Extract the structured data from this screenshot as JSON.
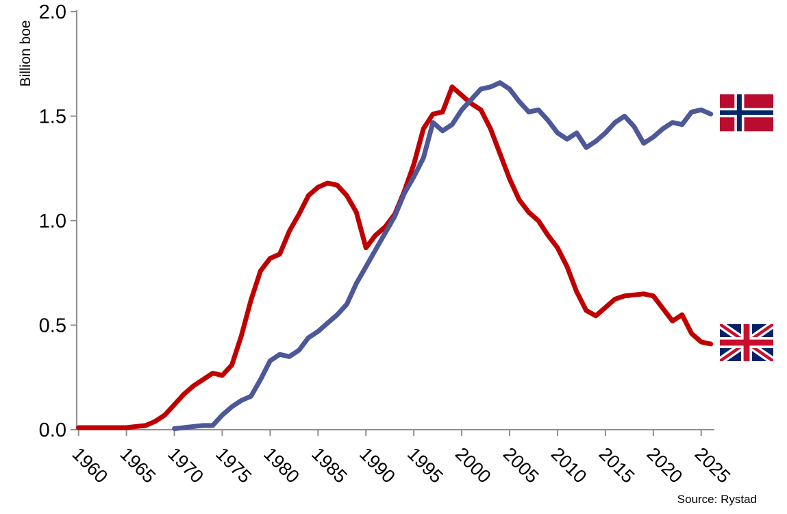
{
  "page": {
    "background": "#FFFFFF"
  },
  "y_axis": {
    "title": "Billion boe",
    "tick_labels": [
      "2.0",
      "1.5",
      "1.0",
      "0.5",
      "0.0"
    ]
  },
  "x_axis": {
    "tick_labels": [
      "1960",
      "1965",
      "1970",
      "1975",
      "1980",
      "1985",
      "1990",
      "1995",
      "2000",
      "2005",
      "2010",
      "2015",
      "2020",
      "2025"
    ]
  },
  "source_note": "Source: Rystad",
  "style": {
    "axis_color": "#8F8F8F",
    "text_color": "#000000",
    "line_width": 7,
    "uk_line_color": "#C00000",
    "norway_line_color": "#4C5897"
  },
  "flags": {
    "norway": {
      "red": "#BA0C2F",
      "blue": "#002868",
      "white": "#FFFFFF"
    },
    "uk": {
      "blue": "#012169",
      "red": "#C8102E",
      "white": "#FFFFFF"
    }
  },
  "chart_data": {
    "type": "line",
    "title": "",
    "xlabel": "",
    "ylabel": "Billion boe",
    "ylim": [
      0,
      2.0
    ],
    "y_ticks": [
      0,
      0.5,
      1.0,
      1.5,
      2.0
    ],
    "x_ticks": [
      1960,
      1965,
      1970,
      1975,
      1980,
      1985,
      1990,
      1995,
      2000,
      2005,
      2010,
      2015,
      2020,
      2025
    ],
    "grid": false,
    "legend": "flag icons at right end of each line (Norway flag on upper line, UK flag on lower line)",
    "series": [
      {
        "name": "United Kingdom",
        "flag": "uk",
        "color": "#C00000",
        "years": [
          1960,
          1961,
          1962,
          1963,
          1964,
          1965,
          1966,
          1967,
          1968,
          1969,
          1970,
          1971,
          1972,
          1973,
          1974,
          1975,
          1976,
          1977,
          1978,
          1979,
          1980,
          1981,
          1982,
          1983,
          1984,
          1985,
          1986,
          1987,
          1988,
          1989,
          1990,
          1991,
          1992,
          1993,
          1994,
          1995,
          1996,
          1997,
          1998,
          1999,
          2000,
          2001,
          2002,
          2003,
          2004,
          2005,
          2006,
          2007,
          2008,
          2009,
          2010,
          2011,
          2012,
          2013,
          2014,
          2015,
          2016,
          2017,
          2018,
          2019,
          2020,
          2021,
          2022,
          2023,
          2024,
          2025,
          2026
        ],
        "values": [
          0.01,
          0.01,
          0.01,
          0.01,
          0.01,
          0.01,
          0.015,
          0.02,
          0.04,
          0.07,
          0.12,
          0.17,
          0.21,
          0.24,
          0.27,
          0.26,
          0.31,
          0.45,
          0.62,
          0.76,
          0.82,
          0.84,
          0.95,
          1.03,
          1.12,
          1.16,
          1.18,
          1.17,
          1.12,
          1.04,
          0.87,
          0.93,
          0.97,
          1.03,
          1.14,
          1.27,
          1.44,
          1.51,
          1.52,
          1.64,
          1.6,
          1.56,
          1.53,
          1.44,
          1.32,
          1.2,
          1.1,
          1.04,
          1.0,
          0.93,
          0.87,
          0.78,
          0.66,
          0.57,
          0.545,
          0.585,
          0.625,
          0.64,
          0.645,
          0.65,
          0.64,
          0.58,
          0.52,
          0.55,
          0.46,
          0.42,
          0.41
        ]
      },
      {
        "name": "Norway",
        "flag": "norway",
        "color": "#4C5897",
        "years": [
          1970,
          1971,
          1972,
          1973,
          1974,
          1975,
          1976,
          1977,
          1978,
          1979,
          1980,
          1981,
          1982,
          1983,
          1984,
          1985,
          1986,
          1987,
          1988,
          1989,
          1990,
          1991,
          1992,
          1993,
          1994,
          1995,
          1996,
          1997,
          1998,
          1999,
          2000,
          2001,
          2002,
          2003,
          2004,
          2005,
          2006,
          2007,
          2008,
          2009,
          2010,
          2011,
          2012,
          2013,
          2014,
          2015,
          2016,
          2017,
          2018,
          2019,
          2020,
          2021,
          2022,
          2023,
          2024,
          2025,
          2026
        ],
        "values": [
          0.005,
          0.01,
          0.015,
          0.02,
          0.02,
          0.07,
          0.11,
          0.14,
          0.16,
          0.24,
          0.33,
          0.36,
          0.35,
          0.38,
          0.44,
          0.47,
          0.51,
          0.55,
          0.6,
          0.7,
          0.78,
          0.86,
          0.94,
          1.02,
          1.13,
          1.21,
          1.3,
          1.47,
          1.43,
          1.46,
          1.53,
          1.58,
          1.63,
          1.64,
          1.66,
          1.63,
          1.57,
          1.52,
          1.53,
          1.48,
          1.42,
          1.39,
          1.42,
          1.35,
          1.38,
          1.42,
          1.47,
          1.5,
          1.45,
          1.37,
          1.4,
          1.44,
          1.47,
          1.46,
          1.52,
          1.53,
          1.51
        ]
      }
    ]
  }
}
